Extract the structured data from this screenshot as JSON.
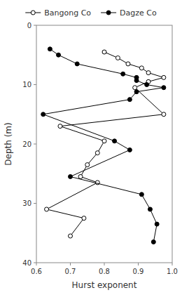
{
  "chart_data": {
    "type": "line",
    "xlabel": "Hurst exponent",
    "ylabel": "Depth (m)",
    "xlim": [
      0.6,
      1.0
    ],
    "ylim": [
      40,
      0
    ],
    "xticks": [
      0.6,
      0.7,
      0.8,
      0.9,
      {
        "value": 1.0,
        "label": "1.0"
      }
    ],
    "yticks": [
      0,
      10,
      20,
      30,
      40
    ],
    "grid": false,
    "legend": "top",
    "series": [
      {
        "name": "Bangong Co",
        "color": "black",
        "marker": "open-circle",
        "line_style": "solid",
        "x": [
          0.8,
          0.84,
          0.87,
          0.91,
          0.93,
          0.975,
          0.93,
          0.89,
          0.975,
          0.67,
          0.8,
          0.78,
          0.75,
          0.73,
          0.78,
          0.63,
          0.74,
          0.7
        ],
        "values": [
          4.5,
          5.5,
          6.5,
          7.2,
          8.0,
          8.8,
          9.5,
          10.5,
          15.0,
          17.0,
          19.5,
          21.5,
          23.5,
          25.5,
          26.5,
          31.0,
          32.5,
          35.5
        ]
      },
      {
        "name": "Dagze Co",
        "color": "black",
        "marker": "circle",
        "line_style": "solid",
        "x": [
          0.64,
          0.665,
          0.72,
          0.855,
          0.895,
          0.895,
          0.925,
          0.975,
          0.895,
          0.875,
          0.62,
          0.83,
          0.875,
          0.7,
          0.91,
          0.935,
          0.955,
          0.945
        ],
        "values": [
          4.0,
          5.0,
          6.5,
          8.2,
          8.8,
          9.3,
          10.0,
          10.5,
          11.2,
          12.5,
          15.0,
          19.5,
          21.0,
          25.5,
          28.5,
          31.0,
          33.5,
          36.5
        ]
      }
    ]
  }
}
